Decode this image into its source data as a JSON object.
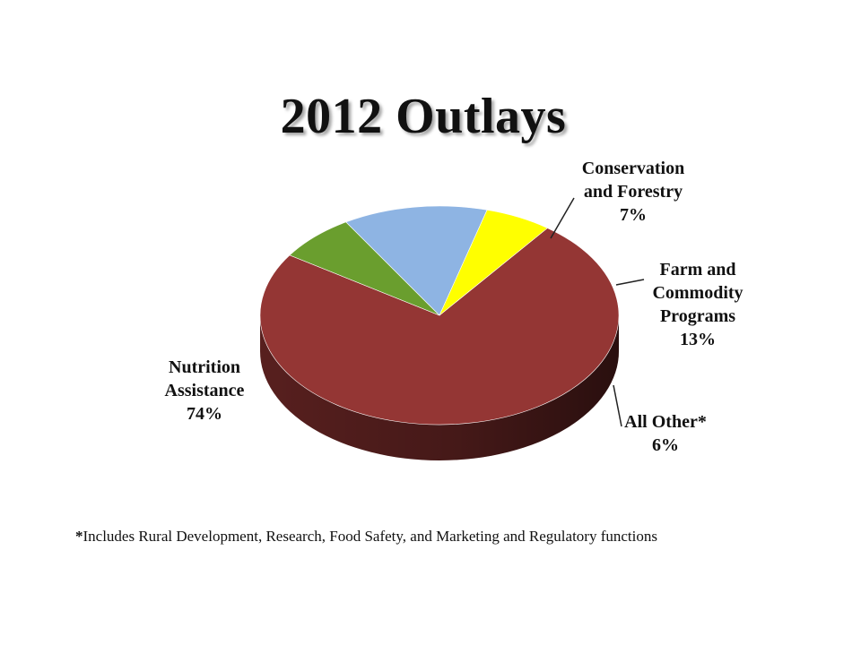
{
  "chart_data": {
    "type": "pie",
    "title": "2012 Outlays",
    "slices": [
      {
        "label_lines": [
          "Nutrition",
          "Assistance"
        ],
        "value_label": "74%",
        "value": 74,
        "color": "#943634"
      },
      {
        "label_lines": [
          "Conservation",
          "and Forestry"
        ],
        "value_label": "7%",
        "value": 7,
        "color": "#6a9e2e"
      },
      {
        "label_lines": [
          "Farm and",
          "Commodity",
          "Programs"
        ],
        "value_label": "13%",
        "value": 13,
        "color": "#8eb4e3"
      },
      {
        "label_lines": [
          "All Other*"
        ],
        "value_label": "6%",
        "value": 6,
        "color": "#ffff00"
      }
    ],
    "three_d": true,
    "legend": "none"
  },
  "footnote": {
    "marker": "*",
    "text": "Includes Rural Development, Research, Food Safety, and Marketing and Regulatory functions"
  }
}
